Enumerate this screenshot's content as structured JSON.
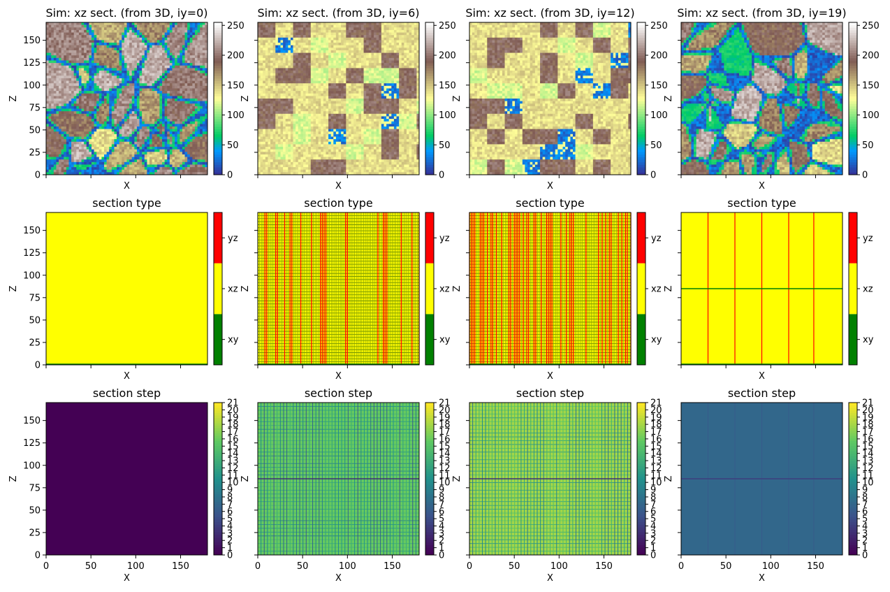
{
  "chart_data": [
    {
      "type": "heatmap",
      "title": "Sim: xz sect. (from 3D, iy=0)",
      "xlabel": "X",
      "ylabel": "Z",
      "xlim": [
        0,
        180
      ],
      "ylim": [
        0,
        170
      ],
      "yticks": [
        "0",
        "25",
        "50",
        "75",
        "100",
        "125",
        "150"
      ],
      "colormap": "terrain",
      "colorbar": {
        "ticks": [
          "0",
          "50",
          "100",
          "150",
          "200",
          "250"
        ],
        "range": [
          0,
          255
        ]
      },
      "pattern": "cells",
      "seed": 3,
      "cell_count": 38
    },
    {
      "type": "heatmap",
      "title": "Sim: xz sect. (from 3D, iy=6)",
      "xlabel": "X",
      "ylabel": "Z",
      "xlim": [
        0,
        180
      ],
      "ylim": [
        0,
        170
      ],
      "colormap": "terrain",
      "colorbar": {
        "ticks": [
          "0",
          "50",
          "100",
          "150",
          "200",
          "250"
        ],
        "range": [
          0,
          255
        ]
      },
      "pattern": "blocky",
      "seed": 7
    },
    {
      "type": "heatmap",
      "title": "Sim: xz sect. (from 3D, iy=12)",
      "xlabel": "X",
      "ylabel": "Z",
      "xlim": [
        0,
        180
      ],
      "ylim": [
        0,
        170
      ],
      "colormap": "terrain",
      "colorbar": {
        "ticks": [
          "0",
          "50",
          "100",
          "150",
          "200",
          "250"
        ],
        "range": [
          0,
          255
        ]
      },
      "pattern": "blocky",
      "seed": 11
    },
    {
      "type": "heatmap",
      "title": "Sim: xz sect. (from 3D, iy=19)",
      "xlabel": "X",
      "ylabel": "Z",
      "xlim": [
        0,
        180
      ],
      "ylim": [
        0,
        170
      ],
      "colormap": "terrain",
      "colorbar": {
        "ticks": [
          "0",
          "50",
          "100",
          "150",
          "200",
          "250"
        ],
        "range": [
          0,
          255
        ]
      },
      "pattern": "cells",
      "seed": 19,
      "cell_count": 44
    },
    {
      "type": "heatmap",
      "title": "section type",
      "xlabel": "X",
      "ylabel": "Z",
      "xlim": [
        0,
        180
      ],
      "ylim": [
        0,
        170
      ],
      "yticks": [
        "0",
        "25",
        "50",
        "75",
        "100",
        "125",
        "150"
      ],
      "colorbar": {
        "labels": [
          "xy",
          "xz",
          "yz"
        ],
        "colors": [
          "#008000",
          "#ffff00",
          "#ff0000"
        ]
      },
      "background": "#ffff00",
      "grid_style": "none"
    },
    {
      "type": "heatmap",
      "title": "section type",
      "xlabel": "X",
      "ylabel": "Z",
      "xlim": [
        0,
        180
      ],
      "ylim": [
        0,
        170
      ],
      "colorbar": {
        "labels": [
          "xy",
          "xz",
          "yz"
        ],
        "colors": [
          "#008000",
          "#ffff00",
          "#ff0000"
        ]
      },
      "background": "#ffff00",
      "grid_style": "dense",
      "red_fraction": 0.18
    },
    {
      "type": "heatmap",
      "title": "section type",
      "xlabel": "X",
      "ylabel": "Z",
      "xlim": [
        0,
        180
      ],
      "ylim": [
        0,
        170
      ],
      "colorbar": {
        "labels": [
          "xy",
          "xz",
          "yz"
        ],
        "colors": [
          "#008000",
          "#ffff00",
          "#ff0000"
        ]
      },
      "background": "#ffff00",
      "grid_style": "dense",
      "red_fraction": 0.45
    },
    {
      "type": "heatmap",
      "title": "section type",
      "xlabel": "X",
      "ylabel": "Z",
      "xlim": [
        0,
        180
      ],
      "ylim": [
        0,
        170
      ],
      "colorbar": {
        "labels": [
          "xy",
          "xz",
          "yz"
        ],
        "colors": [
          "#008000",
          "#ffff00",
          "#ff0000"
        ]
      },
      "background": "#ffff00",
      "grid_style": "sparse",
      "red_lines_x": [
        30,
        60,
        90,
        120,
        148
      ],
      "green_lines_z": [
        85
      ]
    },
    {
      "type": "heatmap",
      "title": "section step",
      "xlabel": "X",
      "ylabel": "Z",
      "xlim": [
        0,
        180
      ],
      "ylim": [
        0,
        170
      ],
      "xticks": [
        "0",
        "50",
        "100",
        "150"
      ],
      "yticks": [
        "0",
        "25",
        "50",
        "75",
        "100",
        "125",
        "150"
      ],
      "colormap": "viridis",
      "colorbar": {
        "ticks": [
          "0",
          "1",
          "2",
          "3",
          "4",
          "5",
          "6",
          "7",
          "8",
          "9",
          "10",
          "11",
          "12",
          "13",
          "14",
          "15",
          "16",
          "17",
          "18",
          "19",
          "20",
          "21"
        ],
        "range": [
          0,
          21
        ]
      },
      "background_value": 0,
      "grid_style": "none"
    },
    {
      "type": "heatmap",
      "title": "section step",
      "xlabel": "X",
      "ylabel": "Z",
      "xlim": [
        0,
        180
      ],
      "ylim": [
        0,
        170
      ],
      "xticks": [
        "0",
        "50",
        "100",
        "150"
      ],
      "colormap": "viridis",
      "colorbar": {
        "ticks": [
          "0",
          "1",
          "2",
          "3",
          "4",
          "5",
          "6",
          "7",
          "8",
          "9",
          "10",
          "11",
          "12",
          "13",
          "14",
          "15",
          "16",
          "17",
          "18",
          "19",
          "20",
          "21"
        ],
        "range": [
          0,
          21
        ]
      },
      "background_value": 16,
      "grid_style": "dense"
    },
    {
      "type": "heatmap",
      "title": "section step",
      "xlabel": "X",
      "ylabel": "Z",
      "xlim": [
        0,
        180
      ],
      "ylim": [
        0,
        170
      ],
      "xticks": [
        "0",
        "50",
        "100",
        "150"
      ],
      "colormap": "viridis",
      "colorbar": {
        "ticks": [
          "0",
          "1",
          "2",
          "3",
          "4",
          "5",
          "6",
          "7",
          "8",
          "9",
          "10",
          "11",
          "12",
          "13",
          "14",
          "15",
          "16",
          "17",
          "18",
          "19",
          "20",
          "21"
        ],
        "range": [
          0,
          21
        ]
      },
      "background_value": 18,
      "grid_style": "dense"
    },
    {
      "type": "heatmap",
      "title": "section step",
      "xlabel": "X",
      "ylabel": "Z",
      "xlim": [
        0,
        180
      ],
      "ylim": [
        0,
        170
      ],
      "xticks": [
        "0",
        "50",
        "100",
        "150"
      ],
      "colormap": "viridis",
      "colorbar": {
        "ticks": [
          "0",
          "1",
          "2",
          "3",
          "4",
          "5",
          "6",
          "7",
          "8",
          "9",
          "10",
          "11",
          "12",
          "13",
          "14",
          "15",
          "16",
          "17",
          "18",
          "19",
          "20",
          "21"
        ],
        "range": [
          0,
          21
        ]
      },
      "background_value": 7,
      "grid_style": "sparse",
      "lines_x": [
        30,
        60,
        90,
        120,
        148
      ],
      "lines_z": [
        85
      ]
    }
  ]
}
